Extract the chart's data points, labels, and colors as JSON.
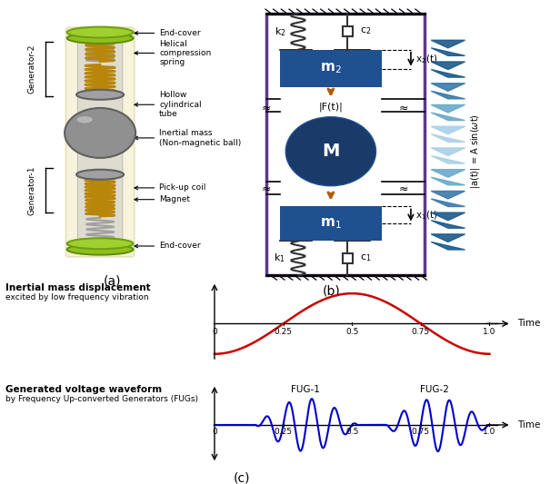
{
  "fig_width": 6.05,
  "fig_height": 5.33,
  "bg_color": "#ffffff",
  "label_a": "(a)",
  "label_b": "(b)",
  "label_c": "(c)",
  "diagram_b_color": "#5b3a8c",
  "mass_color": "#1f5090",
  "mass_dark_color": "#1a3a6a",
  "force_color": "#b05a00",
  "chevron_colors": [
    "#1a5a8a",
    "#1a5a8a",
    "#3a7aaa",
    "#6aaaca",
    "#aad0e8",
    "#aad0e8",
    "#6aaaca",
    "#3a7aaa",
    "#1a5a8a",
    "#1a5a8a"
  ],
  "plot_red": "#cc0000",
  "plot_blue": "#0000cc",
  "inertial_label": "Inertial mass displacement",
  "inertial_sub": "excited by low frequency vibration",
  "voltage_label": "Generated voltage waveform",
  "voltage_sub": "by Frequency Up-converted Generators (FUGs)",
  "fug1_label": "FUG-1",
  "fug2_label": "FUG-2",
  "time_ticks": [
    "0",
    "0.25",
    "0.5",
    "0.75",
    "1.0"
  ],
  "time_tick_vals": [
    0,
    0.25,
    0.5,
    0.75,
    1.0
  ]
}
